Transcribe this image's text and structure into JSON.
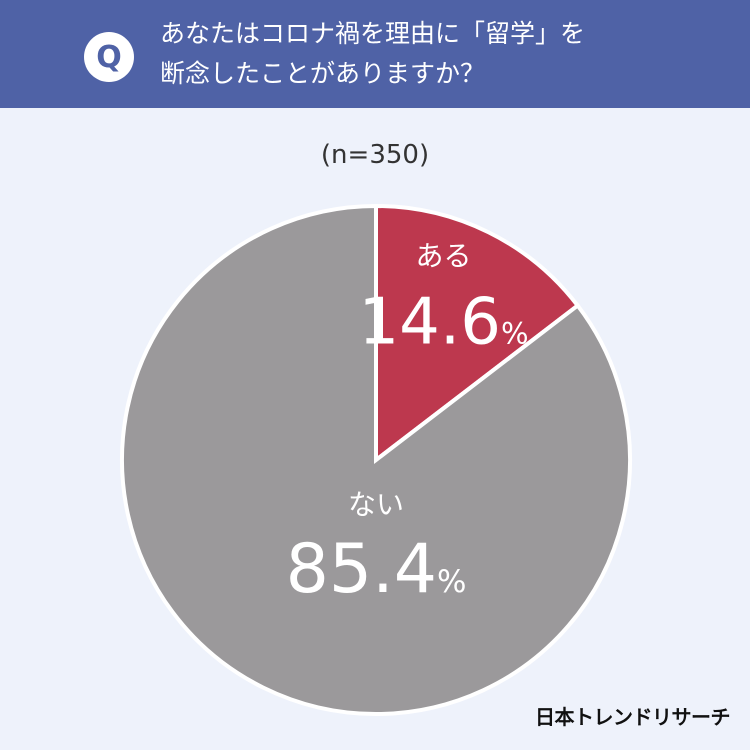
{
  "header": {
    "badge": "Q",
    "question_line1": "あなたはコロナ禍を理由に「留学」を",
    "question_line2": "断念したことがありますか？"
  },
  "sample_note": "(n=350)",
  "brand": "日本トレンドリサーチ",
  "colors": {
    "header_bg": "#4f62a6",
    "page_bg": "#eef2fb",
    "slice_yes": "#bd384e",
    "slice_no": "#9b999b"
  },
  "chart_data": {
    "type": "pie",
    "title": "",
    "slices": [
      {
        "label": "ある",
        "value": 14.6,
        "display": "14.6",
        "unit": "%",
        "color": "#bd384e"
      },
      {
        "label": "ない",
        "value": 85.4,
        "display": "85.4",
        "unit": "%",
        "color": "#9b999b"
      }
    ]
  }
}
